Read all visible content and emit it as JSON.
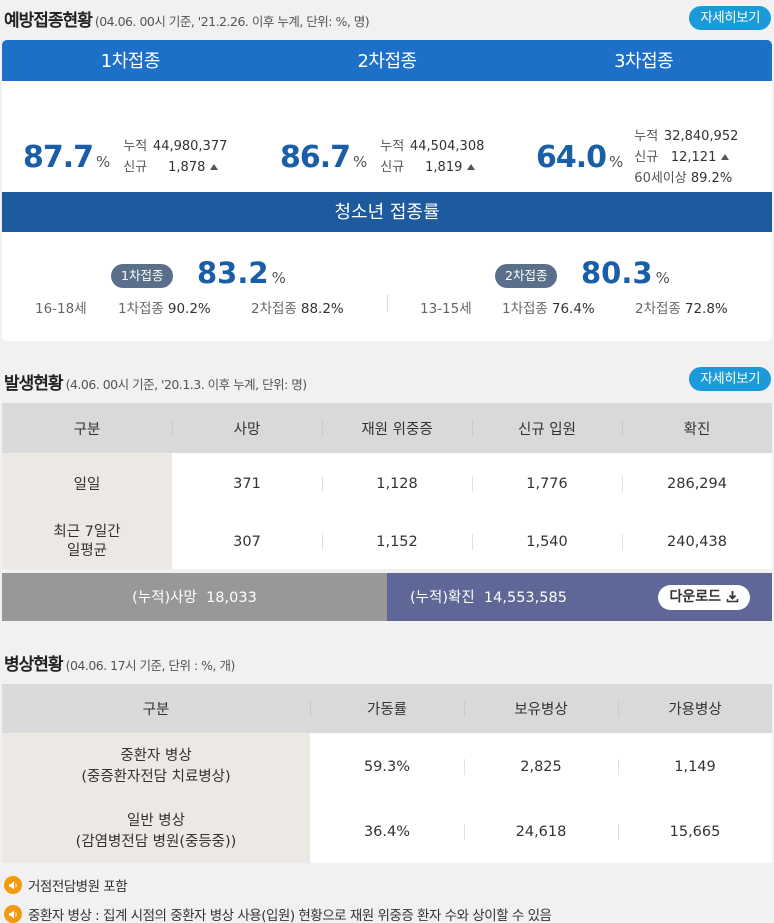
{
  "vaccination": {
    "title": "예방접종현황",
    "subtitle": "(04.06. 00시 기준, '21.2.26. 이후 누계, 단위: %, 명)",
    "more": "자세히보기",
    "doses": [
      {
        "label": "1차접종",
        "pct": "87.7",
        "unit": "%",
        "cum_label": "누적",
        "cum": "44,980,377",
        "new_label": "신규",
        "new": "1,878"
      },
      {
        "label": "2차접종",
        "pct": "86.7",
        "unit": "%",
        "cum_label": "누적",
        "cum": "44,504,308",
        "new_label": "신규",
        "new": "1,819"
      },
      {
        "label": "3차접종",
        "pct": "64.0",
        "unit": "%",
        "cum_label": "누적",
        "cum": "32,840,952",
        "new_label": "신규",
        "new": "12,121",
        "extra_label": "60세이상",
        "extra": "89.2%"
      }
    ],
    "youth": {
      "title": "청소년 접종률",
      "groups": [
        {
          "badge": "1차접종",
          "pct": "83.2",
          "unit": "%",
          "age": "16-18세",
          "d1_label": "1차접종",
          "d1": "90.2%",
          "d2_label": "2차접종",
          "d2": "88.2%"
        },
        {
          "badge": "2차접종",
          "pct": "80.3",
          "unit": "%",
          "age": "13-15세",
          "d1_label": "1차접종",
          "d1": "76.4%",
          "d2_label": "2차접종",
          "d2": "72.8%"
        }
      ]
    }
  },
  "outbreak": {
    "title": "발생현황",
    "subtitle": "(4.06. 00시 기준, '20.1.3. 이후 누계, 단위: 명)",
    "more": "자세히보기",
    "headers": [
      "구분",
      "사망",
      "재원 위중증",
      "신규 입원",
      "확진"
    ],
    "rows": [
      {
        "label": "일일",
        "values": [
          "371",
          "1,128",
          "1,776",
          "286,294"
        ]
      },
      {
        "label": "최근 7일간\n일평균",
        "values": [
          "307",
          "1,152",
          "1,540",
          "240,438"
        ]
      }
    ],
    "cum_death_label": "(누적)사망",
    "cum_death": "18,033",
    "cum_confirmed_label": "(누적)확진",
    "cum_confirmed": "14,553,585",
    "download": "다운로드"
  },
  "beds": {
    "title": "병상현황",
    "subtitle": "(04.06. 17시 기준, 단위 : %, 개)",
    "headers": [
      "구분",
      "가동률",
      "보유병상",
      "가용병상"
    ],
    "rows": [
      {
        "label": "중환자 병상\n(중증환자전담 치료병상)",
        "values": [
          "59.3%",
          "2,825",
          "1,149"
        ]
      },
      {
        "label": "일반 병상\n(감염병전담 병원(중등중))",
        "values": [
          "36.4%",
          "24,618",
          "15,665"
        ]
      }
    ]
  },
  "notes": [
    "거점전담병원 포함",
    "중환자 병상 : 집계 시점의 중환자 병상 사용(입원) 현황으로 재원 위중증 환자 수와 상이할 수 있음"
  ],
  "colors": {
    "primary": "#1d6fc7",
    "accent": "#1a9ad8",
    "number": "#1a5ea8",
    "confirmed_bar": "#5e6796",
    "death_bar": "#989898",
    "note_icon": "#f39a0f"
  }
}
